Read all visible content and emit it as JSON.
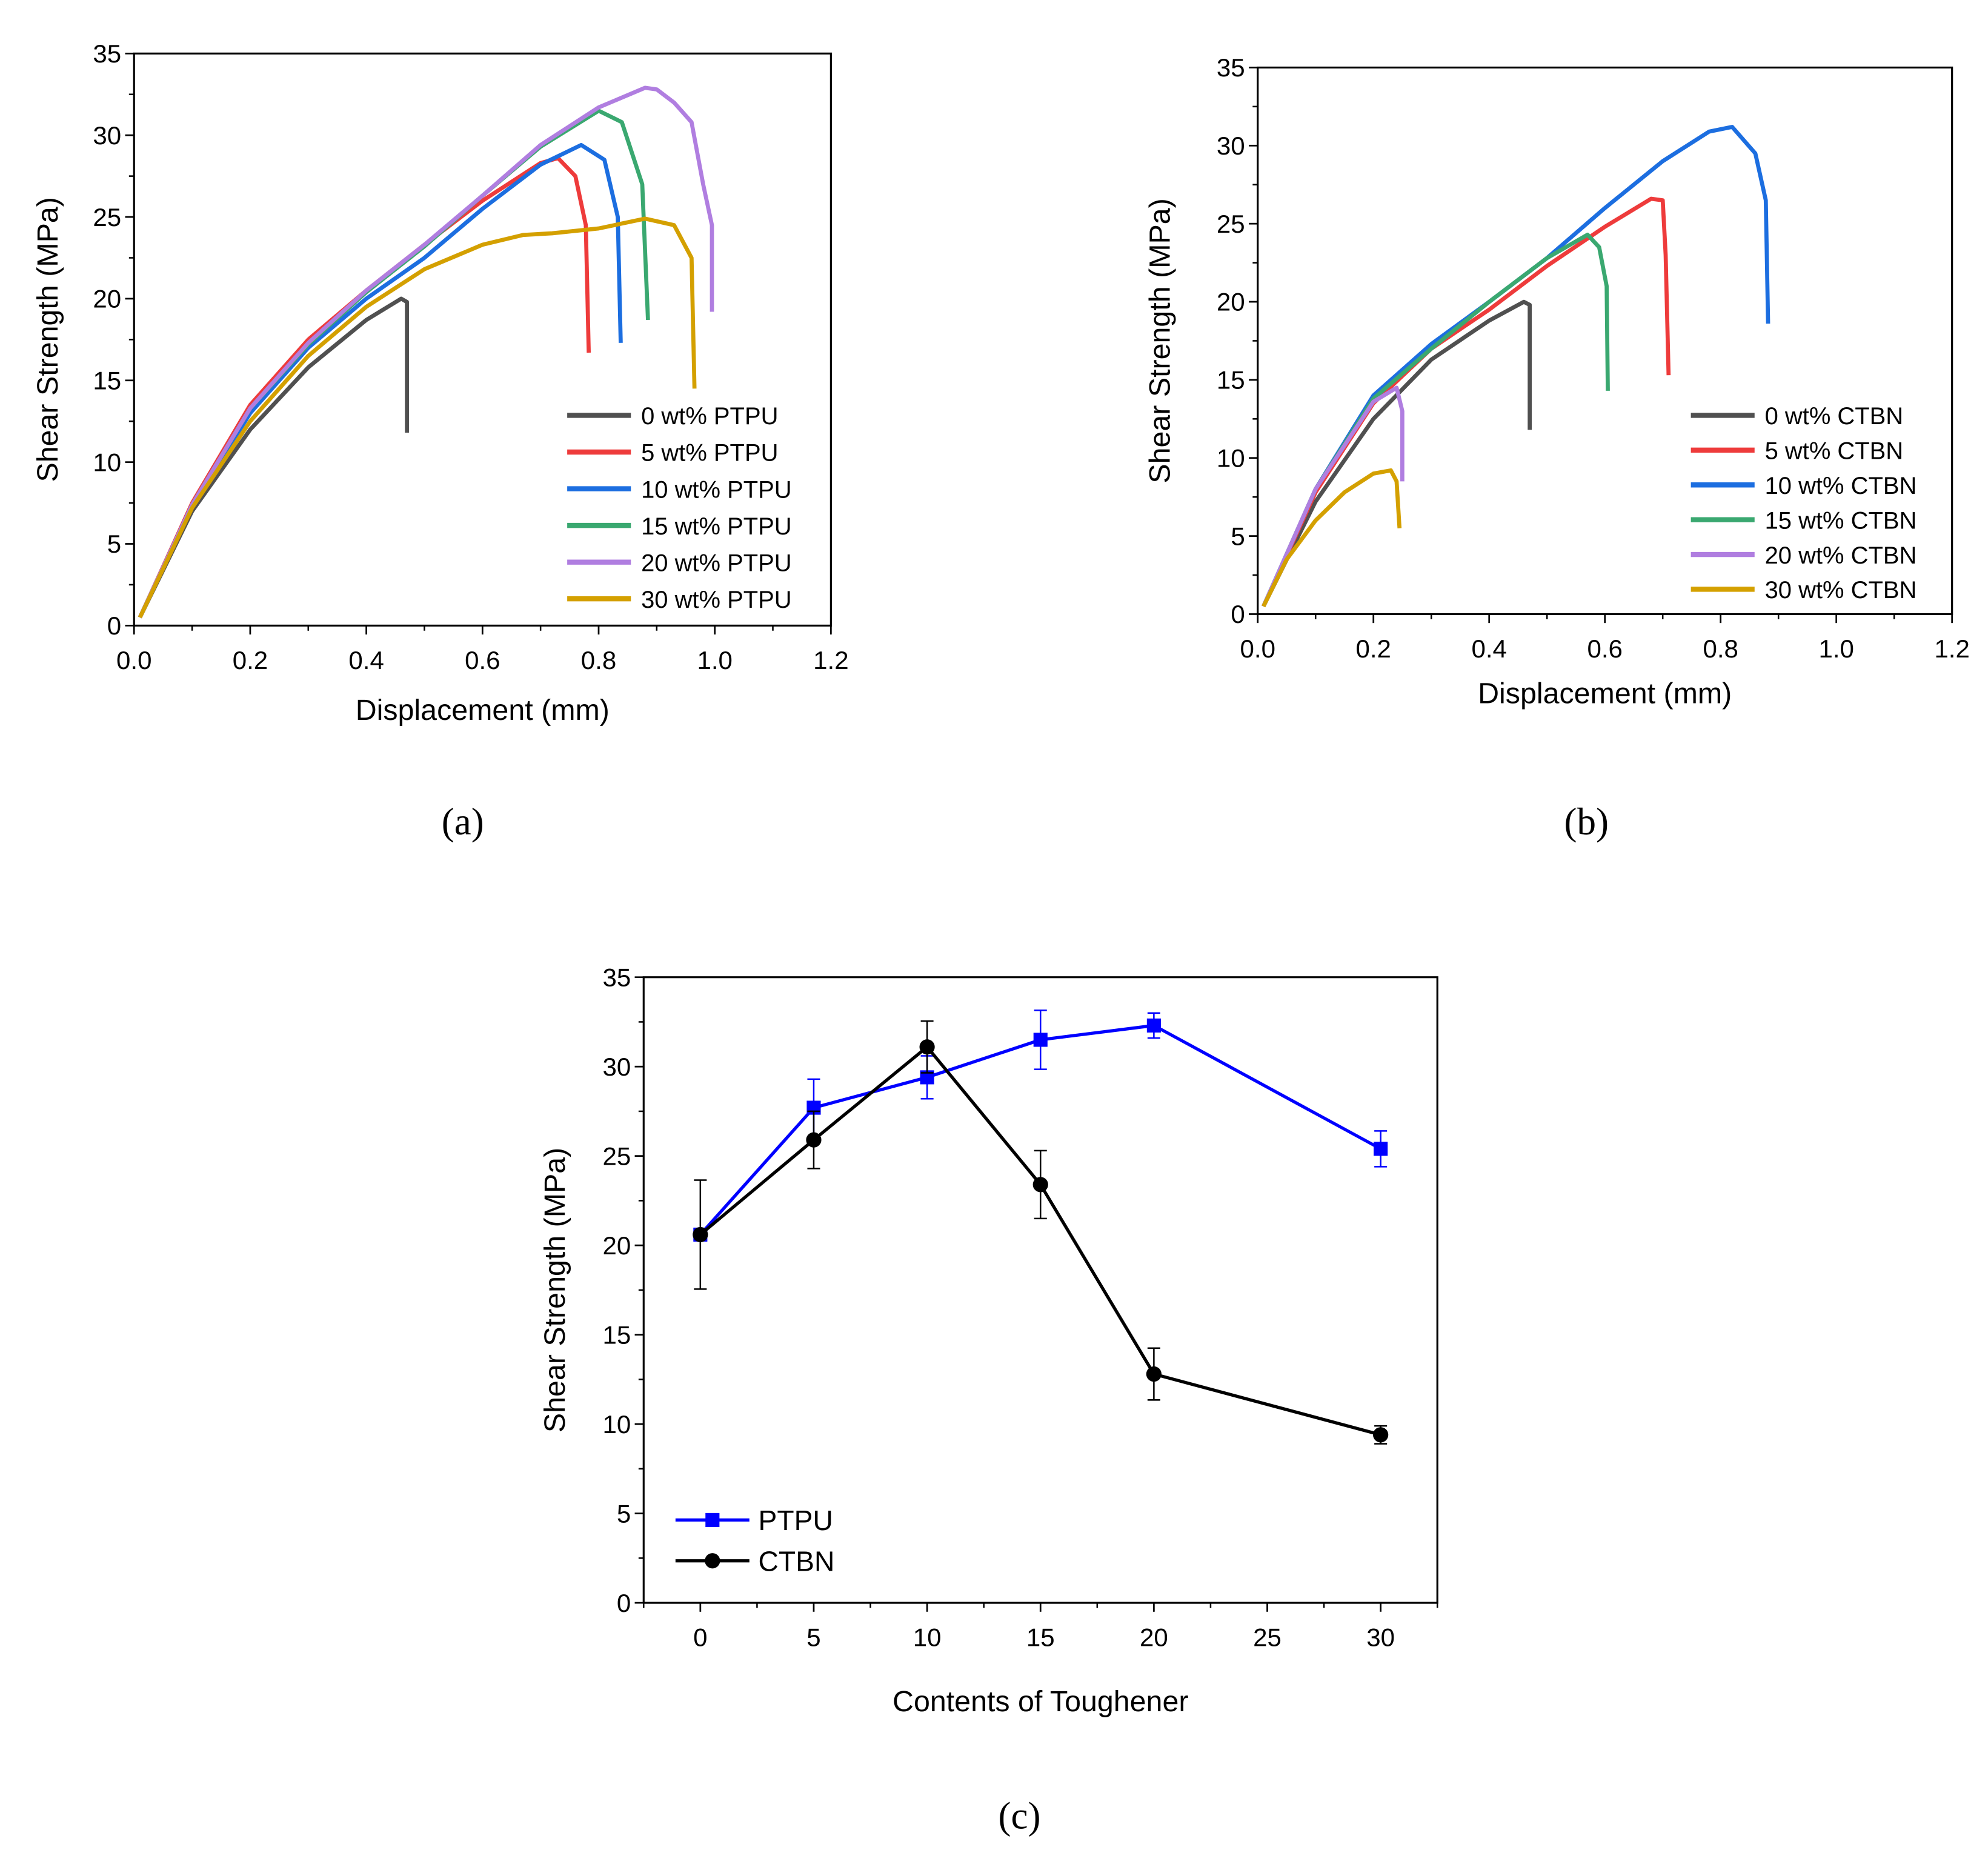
{
  "chart_data": [
    {
      "id": "a",
      "type": "line",
      "panel_label": "(a)",
      "xlabel": "Displacement (mm)",
      "ylabel": "Shear Strength (MPa)",
      "xlim": [
        0,
        1.2
      ],
      "ylim": [
        0,
        35
      ],
      "xticks": [
        0.0,
        0.2,
        0.4,
        0.6,
        0.8,
        1.0,
        1.2
      ],
      "xtick_labels": [
        "0.0",
        "0.2",
        "0.4",
        "0.6",
        "0.8",
        "1.0",
        "1.2"
      ],
      "yticks": [
        0,
        5,
        10,
        15,
        20,
        25,
        30,
        35
      ],
      "ytick_labels": [
        "0",
        "5",
        "10",
        "15",
        "20",
        "25",
        "30",
        "35"
      ],
      "legend_position": "bottom-right",
      "series": [
        {
          "name": "0  wt% PTPU",
          "color": "#505050",
          "points": [
            [
              0.01,
              0.5
            ],
            [
              0.1,
              7
            ],
            [
              0.2,
              12
            ],
            [
              0.3,
              15.8
            ],
            [
              0.4,
              18.7
            ],
            [
              0.46,
              20
            ],
            [
              0.47,
              19.8
            ],
            [
              0.47,
              11.8
            ]
          ]
        },
        {
          "name": "5  wt% PTPU",
          "color": "#ee3b3b",
          "points": [
            [
              0.01,
              0.5
            ],
            [
              0.1,
              7.5
            ],
            [
              0.2,
              13.5
            ],
            [
              0.3,
              17.5
            ],
            [
              0.4,
              20.5
            ],
            [
              0.5,
              23.3
            ],
            [
              0.6,
              26
            ],
            [
              0.7,
              28.3
            ],
            [
              0.73,
              28.6
            ],
            [
              0.76,
              27.5
            ],
            [
              0.778,
              24.5
            ],
            [
              0.783,
              16.7
            ]
          ]
        },
        {
          "name": "10 wt% PTPU",
          "color": "#1c6ee0",
          "points": [
            [
              0.01,
              0.5
            ],
            [
              0.1,
              7.3
            ],
            [
              0.2,
              13
            ],
            [
              0.3,
              17
            ],
            [
              0.4,
              20
            ],
            [
              0.5,
              22.5
            ],
            [
              0.6,
              25.5
            ],
            [
              0.7,
              28.2
            ],
            [
              0.77,
              29.4
            ],
            [
              0.81,
              28.5
            ],
            [
              0.833,
              25
            ],
            [
              0.838,
              17.3
            ]
          ]
        },
        {
          "name": "15 wt% PTPU",
          "color": "#3aa870",
          "points": [
            [
              0.01,
              0.5
            ],
            [
              0.1,
              7.4
            ],
            [
              0.2,
              13.3
            ],
            [
              0.3,
              17.2
            ],
            [
              0.4,
              20.4
            ],
            [
              0.5,
              23.2
            ],
            [
              0.6,
              26.3
            ],
            [
              0.7,
              29.3
            ],
            [
              0.8,
              31.5
            ],
            [
              0.84,
              30.8
            ],
            [
              0.875,
              27
            ],
            [
              0.885,
              18.7
            ]
          ]
        },
        {
          "name": "20 wt% PTPU",
          "color": "#b07ee0",
          "points": [
            [
              0.01,
              0.5
            ],
            [
              0.1,
              7.4
            ],
            [
              0.2,
              13.3
            ],
            [
              0.3,
              17.3
            ],
            [
              0.4,
              20.5
            ],
            [
              0.5,
              23.3
            ],
            [
              0.6,
              26.3
            ],
            [
              0.7,
              29.4
            ],
            [
              0.8,
              31.7
            ],
            [
              0.88,
              32.9
            ],
            [
              0.9,
              32.8
            ],
            [
              0.93,
              32
            ],
            [
              0.96,
              30.8
            ],
            [
              0.98,
              27
            ],
            [
              0.995,
              24.5
            ],
            [
              0.995,
              19.2
            ]
          ]
        },
        {
          "name": "30 wt% PTPU",
          "color": "#d4a000",
          "points": [
            [
              0.01,
              0.5
            ],
            [
              0.1,
              7.2
            ],
            [
              0.2,
              12.5
            ],
            [
              0.3,
              16.5
            ],
            [
              0.4,
              19.5
            ],
            [
              0.5,
              21.8
            ],
            [
              0.6,
              23.3
            ],
            [
              0.67,
              23.9
            ],
            [
              0.72,
              24
            ],
            [
              0.8,
              24.3
            ],
            [
              0.88,
              24.9
            ],
            [
              0.93,
              24.5
            ],
            [
              0.96,
              22.5
            ],
            [
              0.965,
              14.5
            ]
          ]
        }
      ]
    },
    {
      "id": "b",
      "type": "line",
      "panel_label": "(b)",
      "xlabel": "Displacement (mm)",
      "ylabel": "Shear Strength (MPa)",
      "xlim": [
        0,
        1.2
      ],
      "ylim": [
        0,
        35
      ],
      "xticks": [
        0.0,
        0.2,
        0.4,
        0.6,
        0.8,
        1.0,
        1.2
      ],
      "xtick_labels": [
        "0.0",
        "0.2",
        "0.4",
        "0.6",
        "0.8",
        "1.0",
        "1.2"
      ],
      "yticks": [
        0,
        5,
        10,
        15,
        20,
        25,
        30,
        35
      ],
      "ytick_labels": [
        "0",
        "5",
        "10",
        "15",
        "20",
        "25",
        "30",
        "35"
      ],
      "legend_position": "bottom-right",
      "series": [
        {
          "name": "0  wt% CTBN",
          "color": "#505050",
          "points": [
            [
              0.01,
              0.5
            ],
            [
              0.1,
              7.2
            ],
            [
              0.2,
              12.5
            ],
            [
              0.3,
              16.3
            ],
            [
              0.4,
              18.8
            ],
            [
              0.46,
              20
            ],
            [
              0.47,
              19.8
            ],
            [
              0.47,
              11.8
            ]
          ]
        },
        {
          "name": "5  wt% CTBN",
          "color": "#ee3b3b",
          "points": [
            [
              0.01,
              0.5
            ],
            [
              0.1,
              7.8
            ],
            [
              0.2,
              13.5
            ],
            [
              0.3,
              17
            ],
            [
              0.4,
              19.5
            ],
            [
              0.5,
              22.3
            ],
            [
              0.6,
              24.8
            ],
            [
              0.68,
              26.6
            ],
            [
              0.7,
              26.5
            ],
            [
              0.705,
              23
            ],
            [
              0.71,
              15.3
            ]
          ]
        },
        {
          "name": "10 wt% CTBN",
          "color": "#1c6ee0",
          "points": [
            [
              0.01,
              0.5
            ],
            [
              0.1,
              8
            ],
            [
              0.2,
              14
            ],
            [
              0.3,
              17.3
            ],
            [
              0.4,
              20
            ],
            [
              0.5,
              22.8
            ],
            [
              0.6,
              26
            ],
            [
              0.7,
              29
            ],
            [
              0.78,
              30.9
            ],
            [
              0.82,
              31.2
            ],
            [
              0.86,
              29.5
            ],
            [
              0.878,
              26.5
            ],
            [
              0.882,
              18.6
            ]
          ]
        },
        {
          "name": "15 wt% CTBN",
          "color": "#3aa870",
          "points": [
            [
              0.01,
              0.5
            ],
            [
              0.1,
              8
            ],
            [
              0.2,
              13.8
            ],
            [
              0.3,
              17
            ],
            [
              0.4,
              20
            ],
            [
              0.5,
              22.8
            ],
            [
              0.57,
              24.3
            ],
            [
              0.59,
              23.5
            ],
            [
              0.603,
              21
            ],
            [
              0.605,
              14.3
            ]
          ]
        },
        {
          "name": "20 wt% CTBN",
          "color": "#b07ee0",
          "points": [
            [
              0.01,
              0.5
            ],
            [
              0.1,
              8
            ],
            [
              0.2,
              13.6
            ],
            [
              0.24,
              14.5
            ],
            [
              0.25,
              13
            ],
            [
              0.25,
              8.5
            ]
          ]
        },
        {
          "name": "30 wt% CTBN",
          "color": "#d4a000",
          "points": [
            [
              0.01,
              0.5
            ],
            [
              0.05,
              3.5
            ],
            [
              0.1,
              6
            ],
            [
              0.15,
              7.8
            ],
            [
              0.2,
              9
            ],
            [
              0.23,
              9.2
            ],
            [
              0.24,
              8.5
            ],
            [
              0.245,
              5.5
            ]
          ]
        }
      ]
    },
    {
      "id": "c",
      "type": "line",
      "panel_label": "(c)",
      "xlabel": "Contents of Toughener",
      "ylabel": "Shear Strength (MPa)",
      "xlim": [
        -2.5,
        32.5
      ],
      "ylim": [
        0,
        35
      ],
      "xticks": [
        0,
        5,
        10,
        15,
        20,
        25,
        30
      ],
      "xtick_labels": [
        "0",
        "5",
        "10",
        "15",
        "20",
        "25",
        "30"
      ],
      "yticks": [
        0,
        5,
        10,
        15,
        20,
        25,
        30,
        35
      ],
      "ytick_labels": [
        "0",
        "5",
        "10",
        "15",
        "20",
        "25",
        "30",
        "35"
      ],
      "legend_position": "bottom-left",
      "series": [
        {
          "name": "PTPU",
          "color": "#0000ff",
          "marker": "square",
          "x": [
            0,
            5,
            10,
            15,
            20,
            30
          ],
          "y": [
            20.6,
            27.7,
            29.4,
            31.5,
            32.3,
            25.4
          ],
          "err": [
            0.3,
            1.6,
            1.2,
            1.65,
            0.7,
            1.0
          ]
        },
        {
          "name": "CTBN",
          "color": "#000000",
          "marker": "circle",
          "x": [
            0,
            5,
            10,
            15,
            20,
            30
          ],
          "y": [
            20.6,
            25.9,
            31.1,
            23.4,
            12.8,
            9.4
          ],
          "err": [
            3.05,
            1.6,
            1.45,
            1.9,
            1.45,
            0.5
          ]
        }
      ]
    }
  ]
}
